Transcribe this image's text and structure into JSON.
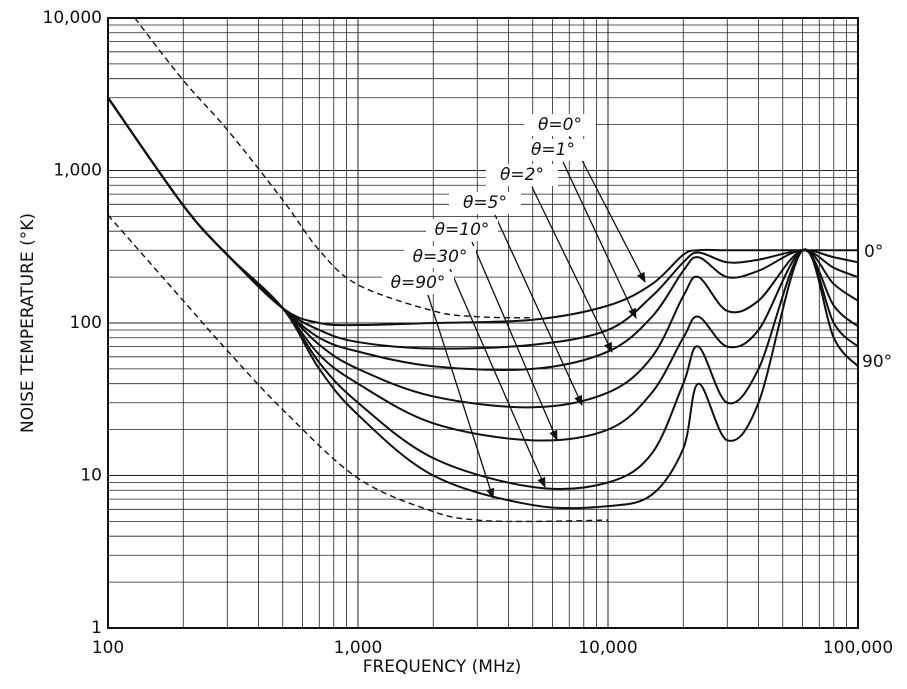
{
  "chart_data": {
    "type": "line",
    "log_x": true,
    "log_y": true,
    "grid": true,
    "x_label": "FREQUENCY (MHz)",
    "y_label": "NOISE TEMPERATURE (°K)",
    "xlim": [
      100,
      100000
    ],
    "ylim": [
      1,
      10000
    ],
    "xticks": [
      100,
      {
        "value": 1000,
        "label": "1,000"
      },
      {
        "value": 10000,
        "label": "10,000"
      },
      {
        "value": 100000,
        "label": "100,000"
      }
    ],
    "yticks": [
      1,
      10,
      100,
      {
        "value": 1000,
        "label": "1,000"
      },
      {
        "value": 10000,
        "label": "10,000"
      }
    ],
    "annotations": [
      "0°",
      "90°"
    ],
    "series": [
      {
        "name": "θ=0°",
        "color": "#111",
        "dash": false,
        "x": [
          100,
          200,
          300,
          500,
          700,
          1000,
          2000,
          5000,
          10000,
          15000,
          20000,
          23000,
          30000,
          40000,
          60000,
          80000,
          100000
        ],
        "values": [
          3000,
          590,
          280,
          125,
          100,
          97,
          100,
          105,
          130,
          180,
          280,
          300,
          300,
          300,
          300,
          300,
          300
        ]
      },
      {
        "name": "θ=1°",
        "color": "#111",
        "dash": false,
        "x": [
          100,
          200,
          300,
          500,
          700,
          1000,
          2000,
          5000,
          10000,
          15000,
          20000,
          23000,
          30000,
          40000,
          60000,
          80000,
          100000
        ],
        "values": [
          3000,
          590,
          280,
          125,
          90,
          75,
          68,
          72,
          90,
          150,
          250,
          290,
          250,
          260,
          300,
          270,
          250
        ]
      },
      {
        "name": "θ=2°",
        "color": "#111",
        "dash": false,
        "x": [
          100,
          200,
          300,
          500,
          700,
          1000,
          2000,
          5000,
          10000,
          15000,
          20000,
          23000,
          30000,
          40000,
          60000,
          80000,
          100000
        ],
        "values": [
          3000,
          590,
          280,
          125,
          80,
          65,
          52,
          50,
          65,
          110,
          220,
          270,
          200,
          220,
          300,
          230,
          200
        ]
      },
      {
        "name": "θ=5°",
        "color": "#111",
        "dash": false,
        "x": [
          100,
          200,
          300,
          500,
          700,
          1000,
          2000,
          5000,
          10000,
          15000,
          20000,
          23000,
          30000,
          40000,
          60000,
          80000,
          100000
        ],
        "values": [
          3000,
          590,
          280,
          125,
          72,
          50,
          33,
          28,
          35,
          60,
          150,
          200,
          120,
          140,
          300,
          180,
          140
        ]
      },
      {
        "name": "θ=10°",
        "color": "#111",
        "dash": false,
        "x": [
          100,
          200,
          300,
          500,
          700,
          1000,
          2000,
          5000,
          10000,
          15000,
          20000,
          23000,
          30000,
          40000,
          60000,
          80000,
          100000
        ],
        "values": [
          3000,
          590,
          280,
          125,
          62,
          40,
          22,
          17,
          20,
          35,
          80,
          110,
          70,
          90,
          300,
          130,
          95
        ]
      },
      {
        "name": "θ=30°",
        "color": "#111",
        "dash": false,
        "x": [
          100,
          200,
          300,
          500,
          700,
          1000,
          2000,
          5000,
          10000,
          15000,
          20000,
          23000,
          30000,
          40000,
          60000,
          80000,
          100000
        ],
        "values": [
          3000,
          590,
          280,
          125,
          55,
          30,
          13,
          8.4,
          9,
          14,
          40,
          70,
          30,
          50,
          300,
          100,
          70
        ]
      },
      {
        "name": "θ=90°",
        "color": "#111",
        "dash": false,
        "x": [
          100,
          200,
          300,
          500,
          700,
          1000,
          2000,
          5000,
          10000,
          15000,
          20000,
          23000,
          30000,
          40000,
          60000,
          80000,
          100000
        ],
        "values": [
          3000,
          590,
          280,
          125,
          50,
          25,
          10,
          6.4,
          6.3,
          7.5,
          15,
          40,
          17,
          30,
          300,
          80,
          52
        ]
      },
      {
        "color": "#111",
        "dash": true,
        "x": [
          128,
          200,
          300,
          500,
          700,
          1000,
          2000,
          3000,
          5000
        ],
        "values": [
          10000,
          3900,
          1850,
          640,
          300,
          178,
          120,
          110,
          108
        ]
      },
      {
        "color": "#111",
        "dash": true,
        "x": [
          100,
          200,
          300,
          500,
          1000,
          2000,
          3000,
          5000,
          10000
        ],
        "values": [
          510,
          140,
          66,
          27,
          9.6,
          5.8,
          5.1,
          5.0,
          5.1
        ]
      }
    ]
  }
}
